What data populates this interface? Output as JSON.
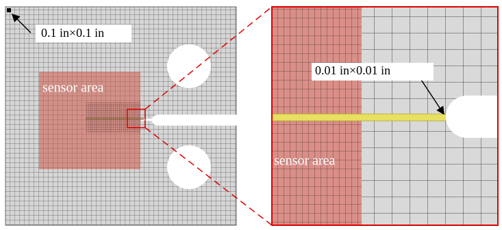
{
  "labels": {
    "coarse_mesh_size": "0.1 in×0.1 in",
    "sensor_area_left": "sensor area",
    "fine_mesh_size": "0.01 in×0.01 in",
    "sensor_area_right": "sensor area"
  }
}
